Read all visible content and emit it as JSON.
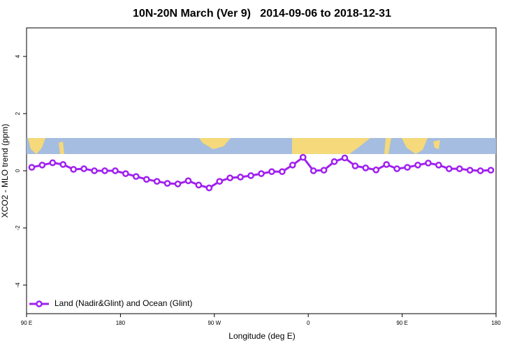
{
  "chart_data": {
    "type": "line",
    "title": "10N-20N March (Ver 9)   2014-09-06 to 2018-12-31",
    "x_label": "Longitude (deg E)",
    "y_label": "XCO2 - MLO trend (ppm)",
    "x": [
      95,
      105,
      115,
      125,
      135,
      145,
      155,
      165,
      175,
      185,
      195,
      205,
      215,
      225,
      235,
      245,
      255,
      265,
      275,
      285,
      295,
      305,
      315,
      325,
      335,
      345,
      355,
      365,
      375,
      385,
      395,
      405,
      415,
      425,
      435,
      445,
      455,
      465,
      475,
      485,
      495,
      505,
      515,
      525,
      535
    ],
    "series": [
      {
        "name": "Land (Nadir&Glint) and Ocean (Glint)",
        "color": "#a020f0",
        "values": [
          0.12,
          0.2,
          0.28,
          0.22,
          0.05,
          0.07,
          0.0,
          0.0,
          0.0,
          -0.1,
          -0.2,
          -0.3,
          -0.37,
          -0.44,
          -0.46,
          -0.35,
          -0.5,
          -0.6,
          -0.37,
          -0.25,
          -0.22,
          -0.17,
          -0.1,
          -0.03,
          -0.03,
          0.2,
          0.47,
          0.0,
          0.02,
          0.32,
          0.45,
          0.17,
          0.1,
          0.03,
          0.22,
          0.07,
          0.12,
          0.2,
          0.27,
          0.2,
          0.07,
          0.07,
          0.02,
          0.0,
          0.02
        ]
      }
    ],
    "xlim": [
      90,
      540
    ],
    "ylim": [
      -5,
      5
    ],
    "xticks": [
      {
        "value": 90,
        "label": "90 E"
      },
      {
        "value": 180,
        "label": "180"
      },
      {
        "value": 270,
        "label": "90 W"
      },
      {
        "value": 360,
        "label": "0"
      },
      {
        "value": 450,
        "label": "90 E"
      },
      {
        "value": 540,
        "label": "180"
      }
    ],
    "yticks": [
      -4,
      -2,
      0,
      2,
      4
    ],
    "legend": "bottom-left"
  }
}
